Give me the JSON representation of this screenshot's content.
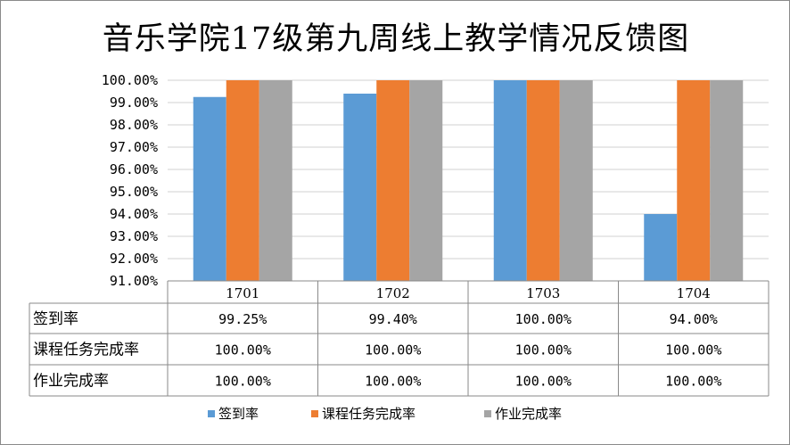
{
  "chart_data": {
    "type": "bar",
    "title": "音乐学院17级第九周线上教学情况反馈图",
    "categories": [
      "1701",
      "1702",
      "1703",
      "1704"
    ],
    "series": [
      {
        "name": "签到率",
        "color": "#5b9bd5",
        "values": [
          99.25,
          99.4,
          100.0,
          94.0
        ],
        "labels": [
          "99.25%",
          "99.40%",
          "100.00%",
          "94.00%"
        ]
      },
      {
        "name": "课程任务完成率",
        "color": "#ed7d31",
        "values": [
          100.0,
          100.0,
          100.0,
          100.0
        ],
        "labels": [
          "100.00%",
          "100.00%",
          "100.00%",
          "100.00%"
        ]
      },
      {
        "name": "作业完成率",
        "color": "#a5a5a5",
        "values": [
          100.0,
          100.0,
          100.0,
          100.0
        ],
        "labels": [
          "100.00%",
          "100.00%",
          "100.00%",
          "100.00%"
        ]
      }
    ],
    "ylim": [
      91,
      100
    ],
    "yticks": [
      "91.00%",
      "92.00%",
      "93.00%",
      "94.00%",
      "95.00%",
      "96.00%",
      "97.00%",
      "98.00%",
      "99.00%",
      "100.00%"
    ],
    "grid": true,
    "legend_placement": "bottom",
    "data_table": true
  }
}
